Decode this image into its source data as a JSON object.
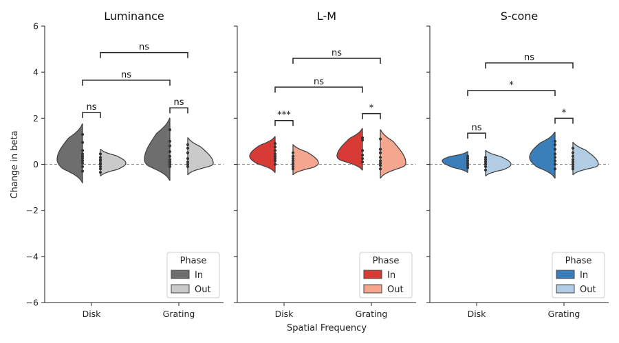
{
  "chart_data": {
    "type": "violin",
    "ylabel": "Change in beta",
    "xlabel": "Spatial Frequency",
    "ylim": [
      -6,
      6
    ],
    "yticks": [
      -6,
      -4,
      -2,
      0,
      2,
      4,
      6
    ],
    "ytick_labels": [
      "−6",
      "−4",
      "−2",
      "0",
      "2",
      "4",
      "6"
    ],
    "categories": [
      "Disk",
      "Grating"
    ],
    "legend": {
      "title": "Phase",
      "entries": [
        "In",
        "Out"
      ],
      "placement": "lower-right"
    },
    "reference_line": 0,
    "panels": [
      {
        "title": "Luminance",
        "colors": {
          "In": "#6e6e6e",
          "Out": "#cacaca"
        },
        "violins": [
          {
            "category": "Disk",
            "phase": "In",
            "min": -0.8,
            "max": 1.75,
            "peak": 0.2,
            "points": [
              -0.3,
              -0.1,
              0.05,
              0.15,
              0.25,
              0.35,
              0.45,
              0.6,
              0.95,
              1.3
            ]
          },
          {
            "category": "Disk",
            "phase": "Out",
            "min": -0.5,
            "max": 0.65,
            "peak": 0.05,
            "points": [
              -0.35,
              -0.2,
              -0.1,
              0.0,
              0.05,
              0.15,
              0.2,
              0.3,
              0.45
            ]
          },
          {
            "category": "Grating",
            "phase": "In",
            "min": -0.7,
            "max": 2.0,
            "peak": 0.2,
            "points": [
              -0.1,
              0.0,
              0.1,
              0.2,
              0.35,
              0.55,
              0.8,
              1.0,
              1.5
            ]
          },
          {
            "category": "Grating",
            "phase": "Out",
            "min": -0.45,
            "max": 1.15,
            "peak": 0.05,
            "points": [
              -0.1,
              0.0,
              0.1,
              0.25,
              0.5,
              0.7,
              0.85
            ]
          }
        ],
        "brackets": [
          {
            "x1": "Disk.In",
            "x2": "Disk.Out",
            "y": 2.25,
            "label": "ns"
          },
          {
            "x1": "Grating.In",
            "x2": "Grating.Out",
            "y": 2.45,
            "label": "ns"
          },
          {
            "x1": "Disk.In",
            "x2": "Grating.In",
            "y": 3.65,
            "label": "ns"
          },
          {
            "x1": "Disk.Out",
            "x2": "Grating.Out",
            "y": 4.85,
            "label": "ns"
          }
        ]
      },
      {
        "title": "L-M",
        "colors": {
          "In": "#d83b35",
          "Out": "#f4a68e"
        },
        "violins": [
          {
            "category": "Disk",
            "phase": "In",
            "min": -0.35,
            "max": 1.2,
            "peak": 0.35,
            "points": [
              0.0,
              0.15,
              0.25,
              0.35,
              0.45,
              0.6,
              0.75,
              0.9
            ]
          },
          {
            "category": "Disk",
            "phase": "Out",
            "min": -0.45,
            "max": 0.85,
            "peak": 0.05,
            "points": [
              -0.2,
              -0.1,
              0.0,
              0.05,
              0.15,
              0.25,
              0.35,
              0.5
            ]
          },
          {
            "category": "Grating",
            "phase": "In",
            "min": -0.25,
            "max": 1.55,
            "peak": 0.35,
            "points": [
              0.1,
              0.25,
              0.4,
              0.6,
              1.05,
              1.15
            ]
          },
          {
            "category": "Grating",
            "phase": "Out",
            "min": -0.6,
            "max": 1.5,
            "peak": 0.05,
            "points": [
              -0.2,
              -0.05,
              0.05,
              0.15,
              0.3,
              0.5,
              0.65,
              1.1
            ]
          }
        ],
        "brackets": [
          {
            "x1": "Disk.In",
            "x2": "Disk.Out",
            "y": 1.9,
            "label": "***"
          },
          {
            "x1": "Grating.In",
            "x2": "Grating.Out",
            "y": 2.2,
            "label": "*"
          },
          {
            "x1": "Disk.In",
            "x2": "Grating.In",
            "y": 3.35,
            "label": "ns"
          },
          {
            "x1": "Disk.Out",
            "x2": "Grating.Out",
            "y": 4.6,
            "label": "ns"
          }
        ]
      },
      {
        "title": "S-cone",
        "colors": {
          "In": "#3b7fba",
          "Out": "#b2cde3"
        },
        "violins": [
          {
            "category": "Disk",
            "phase": "In",
            "min": -0.35,
            "max": 0.55,
            "peak": 0.15,
            "points": [
              -0.15,
              -0.05,
              0.05,
              0.15,
              0.25,
              0.35
            ]
          },
          {
            "category": "Disk",
            "phase": "Out",
            "min": -0.5,
            "max": 0.6,
            "peak": 0.0,
            "points": [
              -0.25,
              -0.1,
              0.0,
              0.1,
              0.2,
              0.3
            ]
          },
          {
            "category": "Grating",
            "phase": "In",
            "min": -0.6,
            "max": 1.4,
            "peak": 0.3,
            "points": [
              -0.2,
              0.0,
              0.15,
              0.3,
              0.45,
              0.65,
              0.85,
              1.0
            ]
          },
          {
            "category": "Grating",
            "phase": "Out",
            "min": -0.45,
            "max": 0.95,
            "peak": 0.0,
            "points": [
              -0.2,
              -0.1,
              0.0,
              0.1,
              0.2,
              0.35,
              0.5,
              0.7
            ]
          }
        ],
        "brackets": [
          {
            "x1": "Disk.In",
            "x2": "Disk.Out",
            "y": 1.35,
            "label": "ns"
          },
          {
            "x1": "Grating.In",
            "x2": "Grating.Out",
            "y": 2.0,
            "label": "*"
          },
          {
            "x1": "Disk.In",
            "x2": "Grating.In",
            "y": 3.2,
            "label": "*"
          },
          {
            "x1": "Disk.Out",
            "x2": "Grating.Out",
            "y": 4.4,
            "label": "ns"
          }
        ]
      }
    ]
  }
}
